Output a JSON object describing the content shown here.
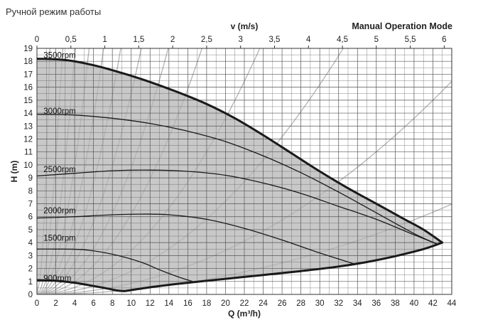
{
  "page": {
    "heading": "Ручной режим работы",
    "mode_label": "Manual Operation Mode"
  },
  "colors": {
    "envelope_fill": "#c8c8c8",
    "grid": "#555555",
    "velocity_lines": "#b4b4b4",
    "curves": "#1a1a1a"
  },
  "chart_data": {
    "type": "line",
    "xlabel": "Q (m³/h)",
    "ylabel": "H (m)",
    "top_axis_label": "v (m/s)",
    "xlim": [
      0,
      44
    ],
    "ylim": [
      0,
      19
    ],
    "x_ticks": [
      0,
      2,
      4,
      6,
      8,
      10,
      12,
      14,
      16,
      18,
      20,
      22,
      24,
      26,
      28,
      30,
      32,
      34,
      36,
      38,
      40,
      42,
      44
    ],
    "y_ticks": [
      0,
      1,
      2,
      3,
      4,
      5,
      6,
      7,
      8,
      9,
      10,
      11,
      12,
      13,
      14,
      15,
      16,
      17,
      18,
      19
    ],
    "top_ticks": [
      "0",
      "0,5",
      "1",
      "1,5",
      "2",
      "2,5",
      "3",
      "3,5",
      "4",
      "4,5",
      "5",
      "5,5",
      "6"
    ],
    "top_ticks_q": [
      0,
      3.6,
      7.2,
      10.8,
      14.4,
      18.0,
      21.6,
      25.2,
      28.8,
      32.4,
      36.0,
      39.6,
      43.2
    ],
    "grid": true,
    "series": [
      {
        "name": "3500rpm",
        "label_at": [
          0.7,
          18.25
        ],
        "x": [
          0,
          3,
          6,
          9,
          12,
          15,
          18,
          21,
          24,
          27,
          30,
          33,
          36,
          39,
          41,
          43
        ],
        "y": [
          18.2,
          18.1,
          17.7,
          17.1,
          16.4,
          15.6,
          14.7,
          13.6,
          12.3,
          10.9,
          9.5,
          8.2,
          7.0,
          5.8,
          5.0,
          4.0
        ]
      },
      {
        "name": "3000rpm",
        "label_at": [
          0.7,
          13.95
        ],
        "x": [
          0,
          4,
          8,
          12,
          16,
          20,
          24,
          28,
          32,
          36,
          40,
          42.4
        ],
        "y": [
          13.9,
          13.85,
          13.6,
          13.2,
          12.6,
          11.8,
          10.7,
          9.4,
          7.9,
          6.3,
          4.7,
          3.9
        ]
      },
      {
        "name": "2500rpm",
        "label_at": [
          0.7,
          9.45
        ],
        "x": [
          0,
          4,
          8,
          12,
          16,
          20,
          24,
          28,
          32,
          36,
          40,
          42.4
        ],
        "y": [
          9.15,
          9.35,
          9.55,
          9.6,
          9.5,
          9.2,
          8.6,
          7.8,
          6.8,
          5.8,
          4.6,
          3.9
        ]
      },
      {
        "name": "2000rpm",
        "label_at": [
          0.7,
          6.25
        ],
        "x": [
          0,
          4,
          8,
          11,
          14,
          18,
          22,
          26,
          30,
          33.7
        ],
        "y": [
          5.9,
          6.0,
          6.15,
          6.2,
          6.15,
          5.8,
          5.1,
          4.2,
          3.2,
          2.35
        ]
      },
      {
        "name": "1500rpm",
        "label_at": [
          0.7,
          4.15
        ],
        "x": [
          0,
          2,
          5,
          8,
          11,
          13,
          15,
          16.5
        ],
        "y": [
          3.5,
          3.5,
          3.45,
          3.1,
          2.5,
          1.9,
          1.35,
          1.0
        ]
      },
      {
        "name": "900rpm",
        "label_at": [
          0.7,
          1.05
        ],
        "x": [
          0,
          2,
          4,
          6,
          7.5,
          8.5,
          9.3
        ],
        "y": [
          1.1,
          1.05,
          0.9,
          0.65,
          0.45,
          0.3,
          0.25
        ]
      }
    ],
    "minimum_curve": {
      "x": [
        9.3,
        12,
        16,
        20,
        24,
        28,
        32,
        35,
        38,
        41,
        43
      ],
      "y": [
        0.25,
        0.55,
        0.9,
        1.2,
        1.5,
        1.8,
        2.15,
        2.5,
        2.95,
        3.5,
        4.0
      ]
    },
    "velocity_lines": [
      {
        "k": 10.0,
        "n": 2
      },
      {
        "k": 2.6,
        "n": 2
      },
      {
        "k": 1.15,
        "n": 2
      },
      {
        "k": 0.62,
        "n": 2
      },
      {
        "k": 0.38,
        "n": 2
      },
      {
        "k": 0.24,
        "n": 2
      },
      {
        "k": 0.155,
        "n": 2
      },
      {
        "k": 0.098,
        "n": 2
      },
      {
        "k": 0.062,
        "n": 2
      },
      {
        "k": 0.034,
        "n": 2
      },
      {
        "k": 0.018,
        "n": 2
      },
      {
        "k": 0.0085,
        "n": 2
      },
      {
        "k": 0.0036,
        "n": 2
      }
    ]
  }
}
